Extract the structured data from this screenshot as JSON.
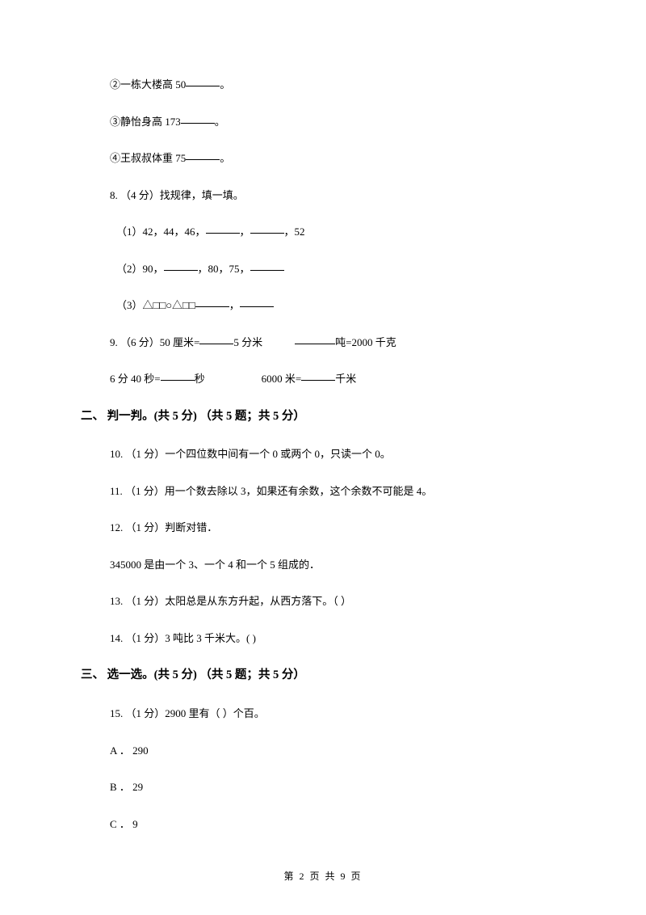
{
  "q_item2": "②一栋大楼高 50",
  "q_item3": "③静怡身高 173",
  "q_item4": "④王叔叔体重 75",
  "period": "。",
  "q8_header": "8.  （4 分）找规律，填一填。",
  "q8_1_a": "（1）42，44，46，",
  "q8_1_b": "，",
  "q8_1_c": "，52",
  "q8_2_a": "（2）90，",
  "q8_2_b": "，80，75，",
  "q8_3_a": "（3）△□□○△□□",
  "q8_3_b": "，",
  "q9_a": "9.  （6 分）50 厘米=",
  "q9_b": "5 分米",
  "q9_c": "吨=2000 千克",
  "q9_line2_a": "6 分 40 秒=",
  "q9_line2_b": "秒",
  "q9_line2_c": "6000 米=",
  "q9_line2_d": "千米",
  "section2": "二、 判一判。(共 5 分) （共 5 题；共 5 分）",
  "q10": "10.  （1 分）一个四位数中间有一个 0 或两个 0，只读一个 0。",
  "q11": "11.  （1 分）用一个数去除以 3，如果还有余数，这个余数不可能是 4。",
  "q12": "12.  （1 分）判断对错．",
  "q12_body": "345000 是由一个 3、一个 4 和一个 5 组成的．",
  "q13": "13.  （1 分）太阳总是从东方升起，从西方落下。（    ）",
  "q14": "14.  （1 分）3 吨比 3 千米大。(     )",
  "section3": "三、 选一选。(共 5 分) （共 5 题；共 5 分）",
  "q15": "15.  （1 分）2900 里有（    ）个百。",
  "q15_a": "A ．  290",
  "q15_b": "B ．  29",
  "q15_c": "C ．  9",
  "footer": "第  2  页  共  9  页"
}
